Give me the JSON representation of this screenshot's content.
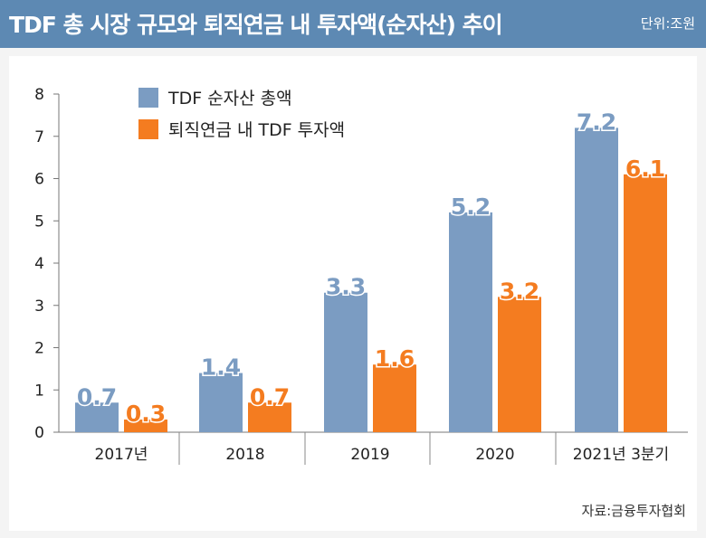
{
  "header": {
    "title": "TDF 총 시장 규모와 퇴직연금 내 투자액(순자산) 추이",
    "unit": "단위:조원"
  },
  "source": "자료:금융투자협회",
  "colors": {
    "header_bg": "#5d89b3",
    "series_blue": "#7b9cc2",
    "series_orange": "#f47c20",
    "label_blue": "#7b9cc2",
    "label_orange": "#f47c20"
  },
  "chart_data": {
    "type": "bar",
    "title": "TDF 총 시장 규모와 퇴직연금 내 투자액(순자산) 추이",
    "xlabel": "",
    "ylabel": "",
    "ylim": [
      0,
      8
    ],
    "yticks": [
      "0",
      "1",
      "2",
      "3",
      "4",
      "5",
      "6",
      "7",
      "8"
    ],
    "categories": [
      "2017년",
      "2018",
      "2019",
      "2020",
      "2021년 3분기"
    ],
    "series": [
      {
        "name": "TDF 순자산 총액",
        "values": [
          0.7,
          1.4,
          3.3,
          5.2,
          7.2
        ],
        "labels": [
          "0.7",
          "1.4",
          "3.3",
          "5.2",
          "7.2"
        ]
      },
      {
        "name": "퇴직연금 내 TDF 투자액",
        "values": [
          0.3,
          0.7,
          1.6,
          3.2,
          6.1
        ],
        "labels": [
          "0.3",
          "0.7",
          "1.6",
          "3.2",
          "6.1"
        ]
      }
    ],
    "legend": "top-left"
  }
}
